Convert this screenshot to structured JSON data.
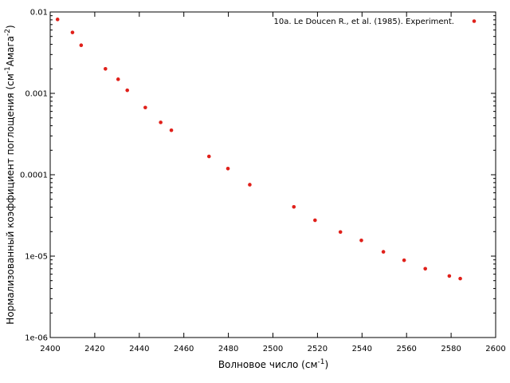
{
  "chart_data": {
    "type": "scatter",
    "xlabel_main": "Волновое число (см",
    "xlabel_sup": "-1",
    "xlabel_tail": ")",
    "ylabel_main": "Нормализованный коэффициент поглощения (см",
    "ylabel_sup1": "-1",
    "ylabel_mid": "Амага",
    "ylabel_sup2": "-2",
    "ylabel_tail": ")",
    "xlim": [
      2400,
      2600
    ],
    "ylim": [
      1e-06,
      0.01
    ],
    "yscale": "log",
    "x_ticks": [
      "2400",
      "2420",
      "2440",
      "2460",
      "2480",
      "2500",
      "2520",
      "2540",
      "2560",
      "2580",
      "2600"
    ],
    "y_ticks": [
      "1e-06",
      "1e-05",
      "0.0001",
      "0.001",
      "0.01"
    ],
    "grid": false,
    "legend_position": "top-right",
    "marker_color": "#e0201a",
    "series": [
      {
        "name": "10a. Le Doucen R., et al. (1985). Experiment.",
        "x": [
          2403.3,
          2410,
          2413.9,
          2424.8,
          2430.5,
          2434.6,
          2442.7,
          2449.6,
          2454.4,
          2471.3,
          2479.8,
          2489.6,
          2509.4,
          2518.9,
          2530.3,
          2539.7,
          2549.6,
          2558.9,
          2568.4,
          2579.2,
          2584.1
        ],
        "y": [
          0.0081,
          0.0056,
          0.0039,
          0.002,
          0.00149,
          0.00109,
          0.00067,
          0.00044,
          0.000352,
          0.000168,
          0.000119,
          7.55e-05,
          4.03e-05,
          2.76e-05,
          1.98e-05,
          1.56e-05,
          1.13e-05,
          8.9e-06,
          7e-06,
          5.7e-06,
          5.3e-06
        ]
      }
    ]
  }
}
